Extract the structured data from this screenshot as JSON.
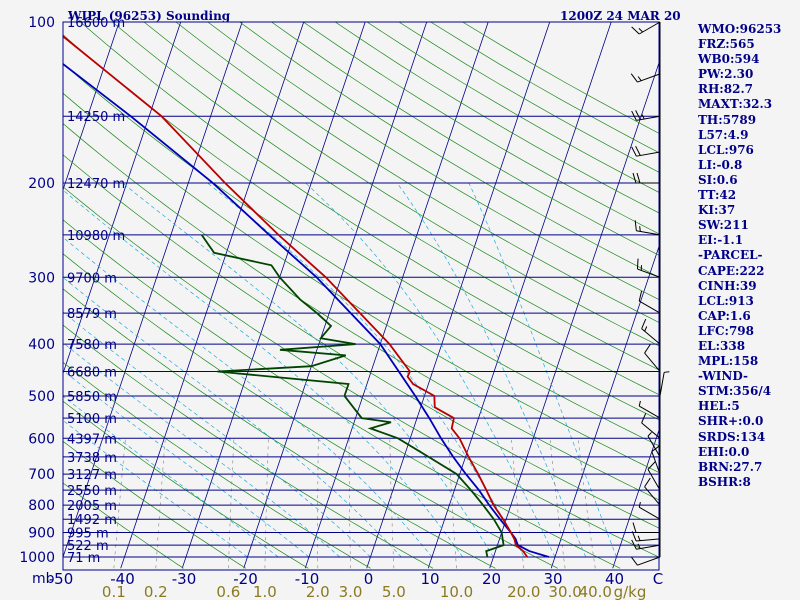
{
  "header": {
    "station": "WIPL (96253) Sounding",
    "time": "1200Z 24 MAR 20"
  },
  "indices": [
    "WMO:96253",
    "FRZ:565",
    "WB0:594",
    "PW:2.30",
    "RH:82.7",
    "MAXT:32.3",
    "TH:5789",
    "L57:4.9",
    "LCL:976",
    "LI:-0.8",
    "SI:0.6",
    "TT:42",
    "KI:37",
    "SW:211",
    "EI:-1.1",
    "-PARCEL-",
    "CAPE:222",
    "CINH:39",
    "LCL:913",
    "CAP:1.6",
    "LFC:798",
    "EL:338",
    "MPL:158",
    "-WIND-",
    "STM:356/4",
    "HEL:5",
    "SHR+:0.0",
    "SRDS:134",
    "EHI:0.0",
    "BRN:27.7",
    "BSHR:8"
  ],
  "colors": {
    "background": "#f4f4f4",
    "frame": "#000088",
    "isobar": "#000088",
    "isotherm": "#000088",
    "dry_adiabat": "#1a8a1a",
    "moist_adiabat": "#22aadd",
    "mixing_ratio": "#808080",
    "temperature": "#bb0000",
    "dewpoint": "#004400",
    "parcel": "#0000bb",
    "wind_barb": "#000000",
    "mixing_label": "#8a7a20"
  },
  "chart_data": {
    "type": "skew-t log-p sounding",
    "pressure_labels": [
      100,
      200,
      300,
      400,
      500,
      600,
      700,
      800,
      900,
      1000
    ],
    "pressure_unit": "mb",
    "isobars": [
      {
        "p": 100,
        "height": "16600 m"
      },
      {
        "p": 150,
        "height": "14250 m"
      },
      {
        "p": 200,
        "height": "12470 m"
      },
      {
        "p": 250,
        "height": "10980 m"
      },
      {
        "p": 300,
        "height": "9700 m"
      },
      {
        "p": 350,
        "height": "8579 m"
      },
      {
        "p": 400,
        "height": "7580 m"
      },
      {
        "p": 450,
        "height": "6680 m"
      },
      {
        "p": 500,
        "height": "5850 m"
      },
      {
        "p": 550,
        "height": "5100 m"
      },
      {
        "p": 600,
        "height": "4397 m"
      },
      {
        "p": 650,
        "height": "3738 m"
      },
      {
        "p": 700,
        "height": "3127 m"
      },
      {
        "p": 750,
        "height": "2550 m"
      },
      {
        "p": 800,
        "height": "2005 m"
      },
      {
        "p": 850,
        "height": "1492 m"
      },
      {
        "p": 900,
        "height": "995 m"
      },
      {
        "p": 950,
        "height": "522 m"
      },
      {
        "p": 1000,
        "height": "71 m"
      }
    ],
    "temperature_ticks": [
      -50,
      -40,
      -30,
      -20,
      -10,
      0,
      10,
      20,
      30,
      40
    ],
    "temperature_tick_labels": [
      "-50",
      "-40",
      "-30",
      "-20",
      "-10",
      "0",
      "10",
      "20",
      "30",
      "40"
    ],
    "temperature_unit": "C",
    "mixing_ratios": [
      0.1,
      0.2,
      0.6,
      1.0,
      2.0,
      3.0,
      5.0,
      10.0,
      20.0,
      30.0,
      40.0
    ],
    "mixing_ratio_labels": [
      "0.1",
      "0.2",
      "0.6",
      "1.0",
      "2.0",
      "3.0",
      "5.0",
      "10.0",
      "20.0",
      "30.0",
      "40.0"
    ],
    "mixing_ratio_unit": "g/kg",
    "axis_corner_unit": "mb",
    "temperature_range": [
      -50,
      50
    ],
    "pressure_range": [
      100,
      1050
    ],
    "series": [
      {
        "p": [
          1000,
          975,
          950,
          925,
          900,
          850,
          800,
          750,
          700,
          650,
          600,
          575,
          550,
          525,
          500,
          475,
          460,
          450,
          400,
          350,
          300,
          250,
          200,
          150,
          100
        ],
        "t": [
          25.5,
          24.5,
          23,
          22.4,
          21.5,
          19.5,
          17.2,
          15.2,
          13,
          10.5,
          8,
          6.2,
          6,
          2.3,
          1.6,
          -2.5,
          -3.8,
          -3.7,
          -8.5,
          -15,
          -22.5,
          -32.5,
          -44,
          -58,
          -82
        ]
      },
      {
        "p": [
          1000,
          975,
          950,
          925,
          900,
          850,
          800,
          750,
          700,
          650,
          600,
          575,
          560,
          550,
          500,
          475,
          450,
          440,
          420,
          410,
          400,
          390,
          370,
          350,
          330,
          300,
          285,
          270,
          250
        ],
        "t": [
          19,
          18.5,
          21,
          20.5,
          20,
          18,
          15.5,
          12.7,
          9.5,
          4,
          -2,
          -7,
          -4,
          -9,
          -13,
          -13,
          -35,
          -20,
          -15,
          -26,
          -14,
          -20,
          -19,
          -22,
          -25.5,
          -30,
          -32,
          -42,
          -45
        ]
      },
      {
        "p": [
          1000,
          975,
          950,
          925,
          900,
          850,
          800,
          750,
          700,
          650,
          600,
          550,
          500,
          450,
          400,
          350,
          300,
          250,
          200,
          150,
          100
        ],
        "t": [
          29,
          25.5,
          23.3,
          22.6,
          21.5,
          19,
          16.5,
          14,
          11,
          8,
          5,
          2,
          -1.5,
          -5.5,
          -10,
          -16.5,
          -24,
          -34,
          -46,
          -63,
          -88
        ]
      }
    ],
    "wind_barbs": [
      {
        "p": 1000,
        "dir": 250,
        "spd": 10
      },
      {
        "p": 950,
        "dir": 260,
        "spd": 15
      },
      {
        "p": 925,
        "dir": 265,
        "spd": 15
      },
      {
        "p": 900,
        "dir": 270,
        "spd": 10
      },
      {
        "p": 850,
        "dir": 300,
        "spd": 5
      },
      {
        "p": 800,
        "dir": 320,
        "spd": 10
      },
      {
        "p": 750,
        "dir": 330,
        "spd": 10
      },
      {
        "p": 700,
        "dir": 340,
        "spd": 10
      },
      {
        "p": 650,
        "dir": 330,
        "spd": 5
      },
      {
        "p": 600,
        "dir": 310,
        "spd": 10
      },
      {
        "p": 550,
        "dir": 300,
        "spd": 5
      },
      {
        "p": 500,
        "dir": 10,
        "spd": 5
      },
      {
        "p": 450,
        "dir": 320,
        "spd": 10
      },
      {
        "p": 400,
        "dir": 310,
        "spd": 15
      },
      {
        "p": 350,
        "dir": 300,
        "spd": 10
      },
      {
        "p": 300,
        "dir": 290,
        "spd": 15
      },
      {
        "p": 250,
        "dir": 280,
        "spd": 15
      },
      {
        "p": 200,
        "dir": 270,
        "spd": 20
      },
      {
        "p": 175,
        "dir": 260,
        "spd": 20
      },
      {
        "p": 150,
        "dir": 260,
        "spd": 25
      },
      {
        "p": 125,
        "dir": 250,
        "spd": 15
      },
      {
        "p": 100,
        "dir": 240,
        "spd": 15
      }
    ]
  }
}
